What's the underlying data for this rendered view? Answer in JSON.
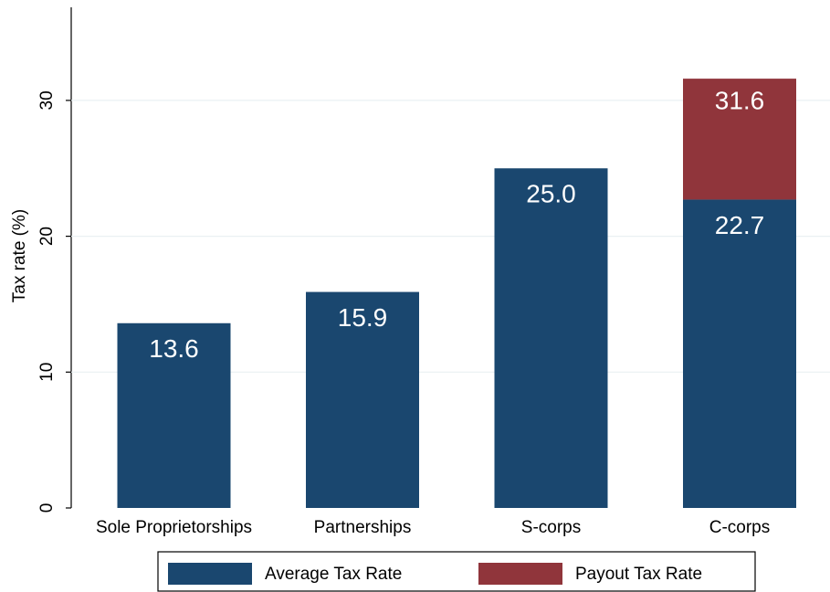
{
  "chart_data": {
    "type": "stacked_bar",
    "y_label": "Tax rate (%)",
    "categories": [
      "Sole Proprietorships",
      "Partnerships",
      "S-corps",
      "C-corps"
    ],
    "series": [
      {
        "name": "Average Tax Rate",
        "color": "#1a476f",
        "values": [
          13.6,
          15.9,
          25.0,
          22.7
        ],
        "value_labels": [
          "13.6",
          "15.9",
          "25.0",
          "22.7"
        ]
      },
      {
        "name": "Payout Tax Rate",
        "color": "#90353b",
        "values": [
          null,
          null,
          null,
          8.9
        ]
      }
    ],
    "totals": [
      null,
      null,
      null,
      31.6
    ],
    "ylim": [
      0,
      37
    ],
    "yticks": [
      0,
      10,
      20,
      30
    ],
    "grid": true
  }
}
